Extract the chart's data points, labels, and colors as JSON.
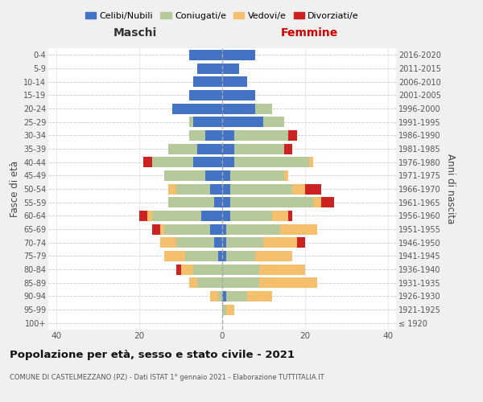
{
  "age_groups": [
    "100+",
    "95-99",
    "90-94",
    "85-89",
    "80-84",
    "75-79",
    "70-74",
    "65-69",
    "60-64",
    "55-59",
    "50-54",
    "45-49",
    "40-44",
    "35-39",
    "30-34",
    "25-29",
    "20-24",
    "15-19",
    "10-14",
    "5-9",
    "0-4"
  ],
  "birth_years": [
    "≤ 1920",
    "1921-1925",
    "1926-1930",
    "1931-1935",
    "1936-1940",
    "1941-1945",
    "1946-1950",
    "1951-1955",
    "1956-1960",
    "1961-1965",
    "1966-1970",
    "1971-1975",
    "1976-1980",
    "1981-1985",
    "1986-1990",
    "1991-1995",
    "1996-2000",
    "2001-2005",
    "2006-2010",
    "2011-2015",
    "2016-2020"
  ],
  "colors": {
    "celibi": "#4472c4",
    "coniugati": "#b5c99a",
    "vedovi": "#f4c06e",
    "divorziati": "#cc2222"
  },
  "males": {
    "celibi": [
      0,
      0,
      0,
      0,
      0,
      1,
      2,
      3,
      5,
      2,
      3,
      4,
      7,
      6,
      4,
      7,
      12,
      8,
      7,
      6,
      8
    ],
    "coniugati": [
      0,
      0,
      1,
      6,
      7,
      8,
      9,
      11,
      12,
      11,
      8,
      10,
      10,
      7,
      4,
      1,
      0,
      0,
      0,
      0,
      0
    ],
    "vedovi": [
      0,
      0,
      2,
      2,
      3,
      5,
      4,
      1,
      1,
      0,
      2,
      0,
      0,
      0,
      0,
      0,
      0,
      0,
      0,
      0,
      0
    ],
    "divorziati": [
      0,
      0,
      0,
      0,
      1,
      0,
      0,
      2,
      2,
      0,
      0,
      0,
      2,
      0,
      0,
      0,
      0,
      0,
      0,
      0,
      0
    ]
  },
  "females": {
    "celibi": [
      0,
      0,
      1,
      0,
      0,
      1,
      1,
      1,
      2,
      2,
      2,
      2,
      3,
      3,
      3,
      10,
      8,
      8,
      6,
      4,
      8
    ],
    "coniugati": [
      0,
      1,
      5,
      9,
      9,
      7,
      9,
      13,
      10,
      20,
      15,
      13,
      18,
      12,
      13,
      5,
      4,
      0,
      0,
      0,
      0
    ],
    "vedovi": [
      0,
      2,
      6,
      14,
      11,
      9,
      8,
      9,
      4,
      2,
      3,
      1,
      1,
      0,
      0,
      0,
      0,
      0,
      0,
      0,
      0
    ],
    "divorziati": [
      0,
      0,
      0,
      0,
      0,
      0,
      2,
      0,
      1,
      3,
      4,
      0,
      0,
      2,
      2,
      0,
      0,
      0,
      0,
      0,
      0
    ]
  },
  "xlim": 42,
  "title": "Popolazione per età, sesso e stato civile - 2021",
  "subtitle": "COMUNE DI CASTELMEZZANO (PZ) - Dati ISTAT 1° gennaio 2021 - Elaborazione TUTTITALIA.IT",
  "ylabel_left": "Fasce di età",
  "ylabel_right": "Anni di nascita",
  "xlabel_left": "Maschi",
  "xlabel_right": "Femmine",
  "bg_color": "#f0f0f0",
  "plot_bg": "#ffffff"
}
